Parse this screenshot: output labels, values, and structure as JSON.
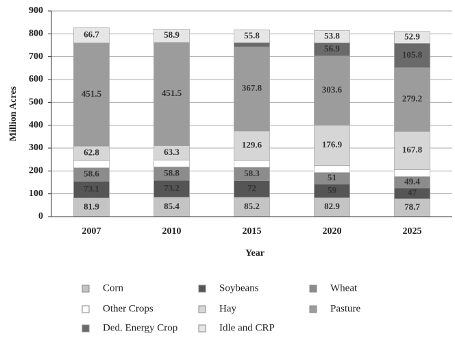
{
  "chart_data": {
    "type": "stacked_bar",
    "x_label": "Year",
    "y_label": "Million Acres",
    "categories": [
      "2007",
      "2010",
      "2015",
      "2020",
      "2025"
    ],
    "ylim": [
      0,
      900
    ],
    "yticks": [
      0,
      100,
      200,
      300,
      400,
      500,
      600,
      700,
      800,
      900
    ],
    "grid": true,
    "series": [
      {
        "name": "Corn",
        "color": "#c4c4c4",
        "values": [
          81.9,
          85.4,
          85.2,
          82.9,
          78.7
        ],
        "labels": true
      },
      {
        "name": "Soybeans",
        "color": "#555555",
        "values": [
          73.1,
          73.2,
          72.0,
          59.0,
          47.0
        ],
        "labels": true
      },
      {
        "name": "Wheat",
        "color": "#8c8c8c",
        "values": [
          58.6,
          58.8,
          58.3,
          51.0,
          49.4
        ],
        "labels": true
      },
      {
        "name": "Other Crops",
        "color": "#ffffff",
        "values": [
          32,
          30,
          30,
          30,
          30
        ],
        "labels": false
      },
      {
        "name": "Hay",
        "color": "#d6d6d6",
        "values": [
          62.8,
          63.3,
          129.6,
          176.9,
          167.8
        ],
        "labels": true
      },
      {
        "name": "Pasture",
        "color": "#9c9c9c",
        "values": [
          451.5,
          451.5,
          367.8,
          303.6,
          279.2
        ],
        "labels": true
      },
      {
        "name": "Ded. Energy Crop",
        "color": "#6a6a6a",
        "values": [
          0,
          0,
          18,
          56.9,
          105.8
        ],
        "value_labels": [
          null,
          null,
          null,
          "56.9",
          "105.8"
        ]
      },
      {
        "name": "Idle and CRP",
        "color": "#e6e6e6",
        "values": [
          66.7,
          58.9,
          55.8,
          53.8,
          52.9
        ],
        "labels": true
      }
    ]
  }
}
